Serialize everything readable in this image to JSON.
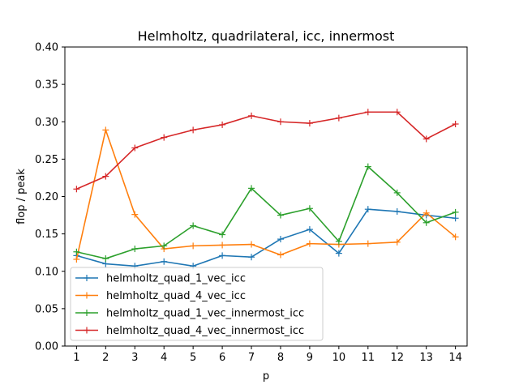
{
  "chart_data": {
    "type": "line",
    "title": "Helmholtz, quadrilateral, icc, innermost",
    "xlabel": "p",
    "ylabel": "flop / peak",
    "x": [
      1,
      2,
      3,
      4,
      5,
      6,
      7,
      8,
      9,
      10,
      11,
      12,
      13,
      14
    ],
    "xlim": [
      0.6,
      14.4
    ],
    "ylim": [
      0.0,
      0.4
    ],
    "yticks": [
      "0.00",
      "0.05",
      "0.10",
      "0.15",
      "0.20",
      "0.25",
      "0.30",
      "0.35",
      "0.40"
    ],
    "xticks": [
      "1",
      "2",
      "3",
      "4",
      "5",
      "6",
      "7",
      "8",
      "9",
      "10",
      "11",
      "12",
      "13",
      "14"
    ],
    "grid": false,
    "legend_position": "lower-left",
    "marker": "plus",
    "series": [
      {
        "name": "helmholtz_quad_1_vec_icc",
        "color": "#1f77b4",
        "values": [
          0.121,
          0.11,
          0.107,
          0.113,
          0.107,
          0.121,
          0.119,
          0.143,
          0.156,
          0.124,
          0.183,
          0.18,
          0.175,
          0.171
        ]
      },
      {
        "name": "helmholtz_quad_4_vec_icc",
        "color": "#ff7f0e",
        "values": [
          0.116,
          0.289,
          0.176,
          0.13,
          0.134,
          0.135,
          0.136,
          0.122,
          0.137,
          0.136,
          0.137,
          0.139,
          0.178,
          0.146
        ]
      },
      {
        "name": "helmholtz_quad_1_vec_innermost_icc",
        "color": "#2ca02c",
        "values": [
          0.126,
          0.117,
          0.13,
          0.134,
          0.161,
          0.149,
          0.211,
          0.175,
          0.184,
          0.14,
          0.24,
          0.205,
          0.165,
          0.179
        ]
      },
      {
        "name": "helmholtz_quad_4_vec_innermost_icc",
        "color": "#d62728",
        "values": [
          0.21,
          0.227,
          0.265,
          0.279,
          0.289,
          0.296,
          0.308,
          0.3,
          0.298,
          0.305,
          0.313,
          0.313,
          0.277,
          0.297
        ]
      }
    ]
  }
}
